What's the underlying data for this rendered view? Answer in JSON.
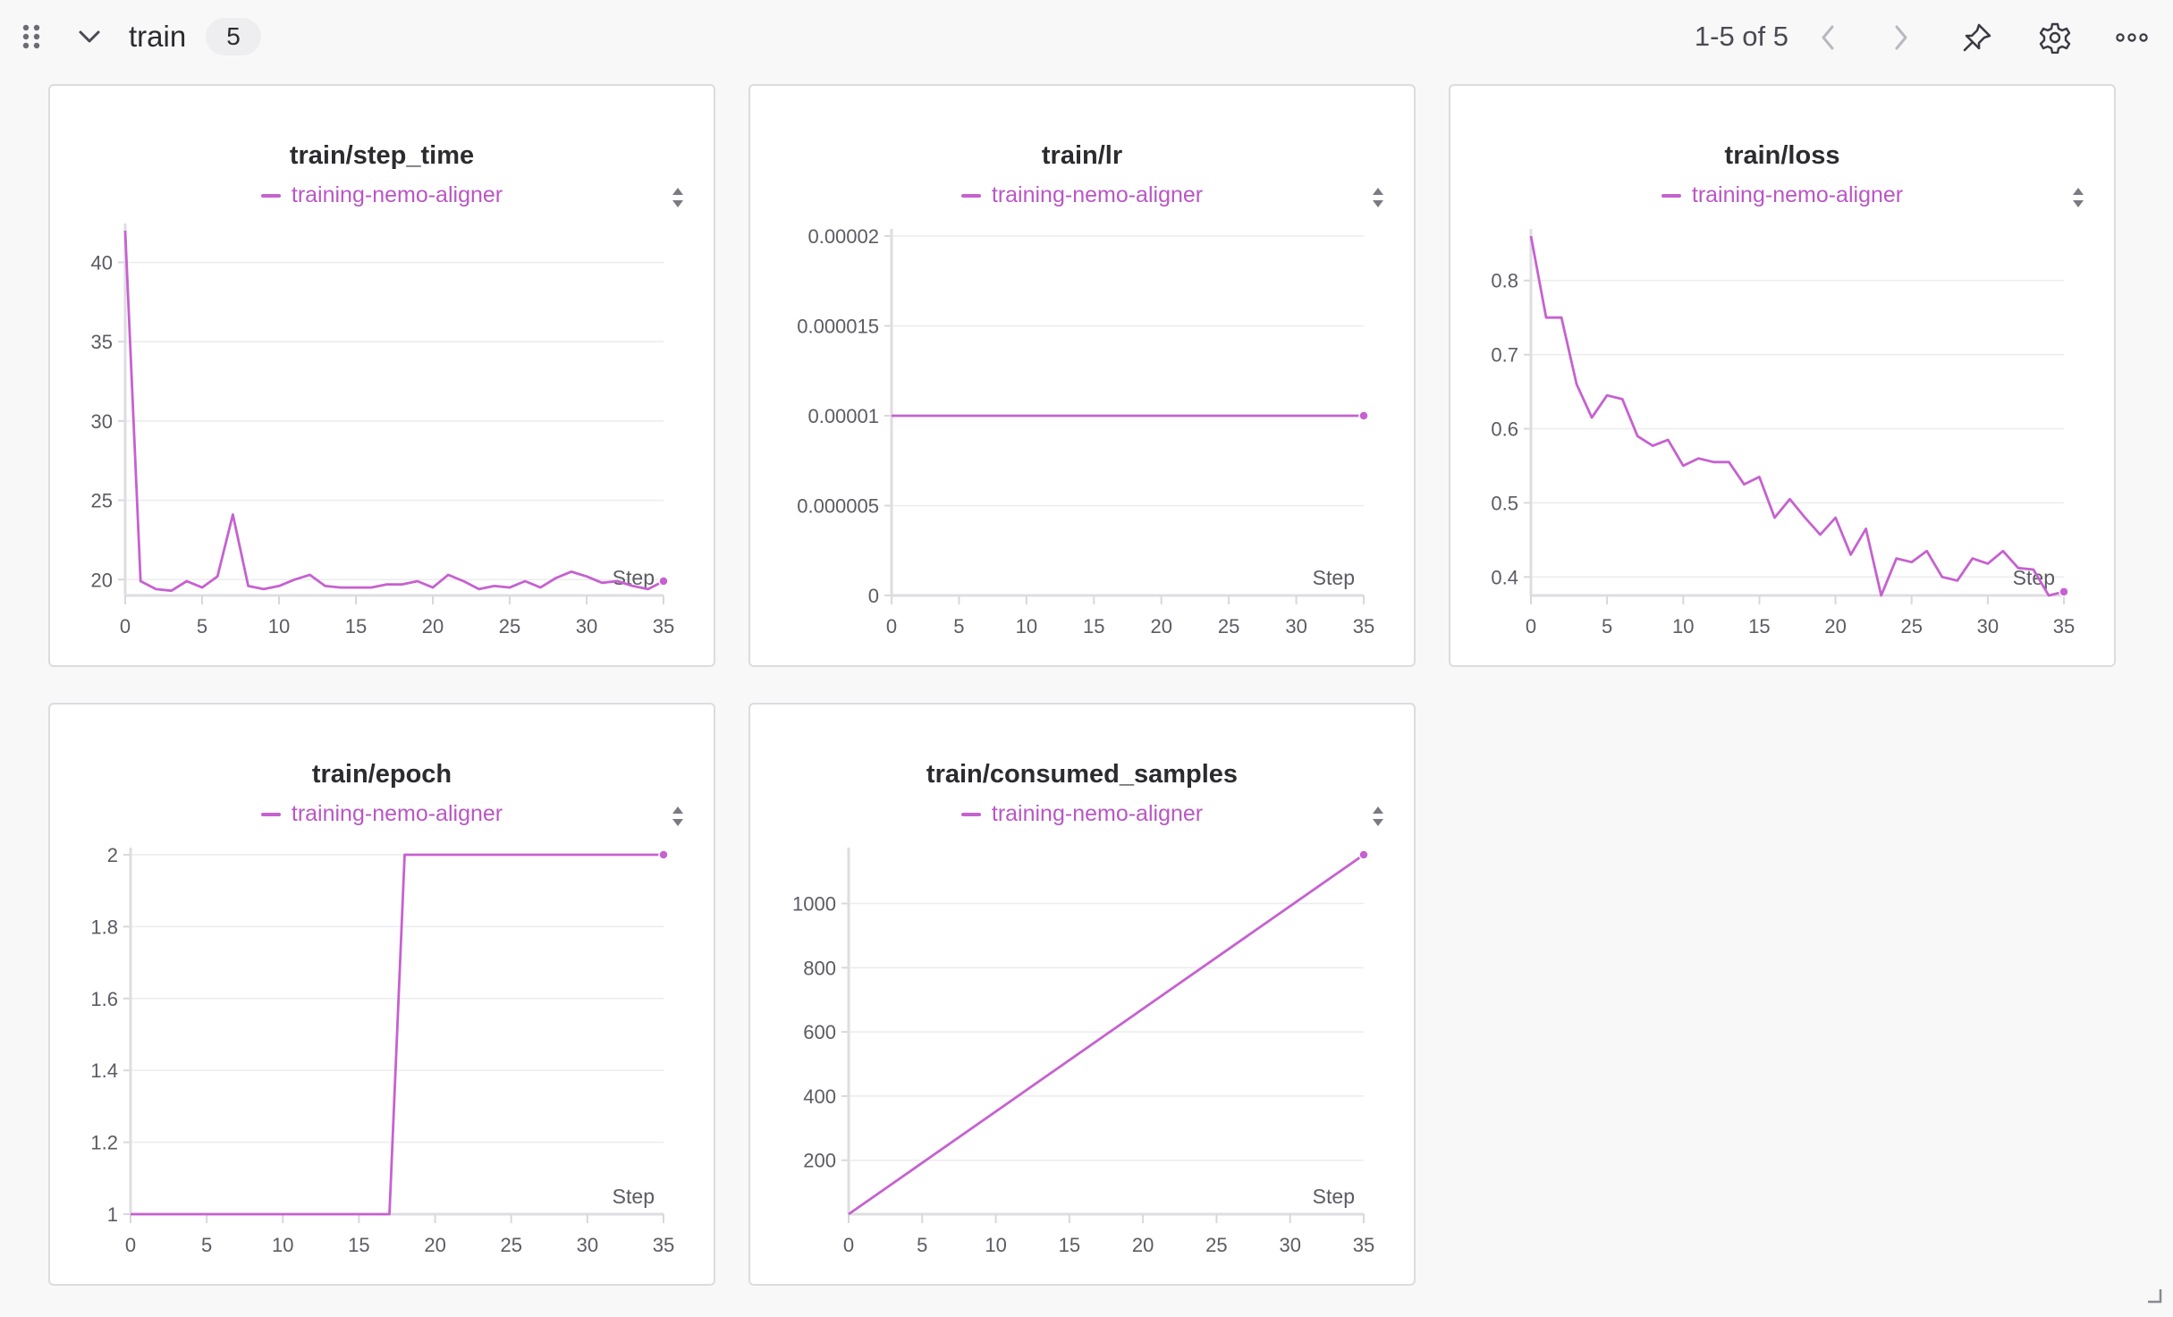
{
  "header": {
    "group_title": "train",
    "group_count": "5",
    "pager": "1-5 of 5",
    "icons": [
      "drag-handle-icon",
      "chevron-down-icon",
      "chevron-left-icon",
      "chevron-right-icon",
      "pin-icon",
      "gear-icon",
      "more-horizontal-icon"
    ]
  },
  "colors": {
    "series": "#c661d0",
    "legend_text": "#b957c4"
  },
  "chart_data": [
    {
      "type": "line",
      "title": "train/step_time",
      "xlabel": "Step",
      "ylabel": "",
      "xlim": [
        0,
        35
      ],
      "ylim": [
        19,
        42
      ],
      "xticks": [
        0,
        5,
        10,
        15,
        20,
        25,
        30,
        35
      ],
      "yticks": [
        20,
        25,
        30,
        35,
        40
      ],
      "ytick_labels": [
        "20",
        "25",
        "30",
        "35",
        "40"
      ],
      "series": [
        {
          "name": "training-nemo-aligner",
          "x": [
            0,
            1,
            2,
            3,
            4,
            5,
            6,
            7,
            8,
            9,
            10,
            11,
            12,
            13,
            14,
            15,
            16,
            17,
            18,
            19,
            20,
            21,
            22,
            23,
            24,
            25,
            26,
            27,
            28,
            29,
            30,
            31,
            32,
            33,
            34,
            35
          ],
          "y": [
            42,
            19.9,
            19.4,
            19.3,
            19.9,
            19.5,
            20.2,
            24.1,
            19.6,
            19.4,
            19.6,
            20.0,
            20.3,
            19.6,
            19.5,
            19.5,
            19.5,
            19.7,
            19.7,
            19.9,
            19.5,
            20.3,
            19.9,
            19.4,
            19.6,
            19.5,
            19.9,
            19.5,
            20.1,
            20.5,
            20.2,
            19.8,
            19.9,
            19.6,
            19.4,
            19.9
          ]
        }
      ]
    },
    {
      "type": "line",
      "title": "train/lr",
      "xlabel": "Step",
      "ylabel": "",
      "xlim": [
        0,
        35
      ],
      "ylim": [
        0,
        2e-05
      ],
      "xticks": [
        0,
        5,
        10,
        15,
        20,
        25,
        30,
        35
      ],
      "yticks": [
        0,
        5e-06,
        1e-05,
        1.5e-05,
        2e-05
      ],
      "ytick_labels": [
        "0",
        "0.000005",
        "0.00001",
        "0.000015",
        "0.00002"
      ],
      "series": [
        {
          "name": "training-nemo-aligner",
          "x": [
            0,
            35
          ],
          "y": [
            1e-05,
            1e-05
          ]
        }
      ]
    },
    {
      "type": "line",
      "title": "train/loss",
      "xlabel": "Step",
      "ylabel": "",
      "xlim": [
        0,
        35
      ],
      "ylim": [
        0.375,
        0.86
      ],
      "xticks": [
        0,
        5,
        10,
        15,
        20,
        25,
        30,
        35
      ],
      "yticks": [
        0.4,
        0.5,
        0.6,
        0.7,
        0.8
      ],
      "ytick_labels": [
        "0.4",
        "0.5",
        "0.6",
        "0.7",
        "0.8"
      ],
      "series": [
        {
          "name": "training-nemo-aligner",
          "x": [
            0,
            1,
            2,
            3,
            4,
            5,
            6,
            7,
            8,
            9,
            10,
            11,
            12,
            13,
            14,
            15,
            16,
            17,
            18,
            19,
            20,
            21,
            22,
            23,
            24,
            25,
            26,
            27,
            28,
            29,
            30,
            31,
            32,
            33,
            34,
            35
          ],
          "y": [
            0.86,
            0.75,
            0.75,
            0.66,
            0.615,
            0.645,
            0.64,
            0.59,
            0.577,
            0.585,
            0.55,
            0.56,
            0.555,
            0.555,
            0.525,
            0.535,
            0.48,
            0.505,
            0.48,
            0.457,
            0.48,
            0.43,
            0.465,
            0.375,
            0.425,
            0.42,
            0.435,
            0.4,
            0.395,
            0.425,
            0.418,
            0.435,
            0.412,
            0.41,
            0.375,
            0.38
          ]
        }
      ]
    },
    {
      "type": "line",
      "title": "train/epoch",
      "xlabel": "Step",
      "ylabel": "",
      "xlim": [
        0,
        35
      ],
      "ylim": [
        1,
        2
      ],
      "xticks": [
        0,
        5,
        10,
        15,
        20,
        25,
        30,
        35
      ],
      "yticks": [
        1,
        1.2,
        1.4,
        1.6,
        1.8,
        2
      ],
      "ytick_labels": [
        "1",
        "1.2",
        "1.4",
        "1.6",
        "1.8",
        "2"
      ],
      "series": [
        {
          "name": "training-nemo-aligner",
          "x": [
            0,
            17,
            18,
            35
          ],
          "y": [
            1,
            1,
            2,
            2
          ]
        }
      ]
    },
    {
      "type": "line",
      "title": "train/consumed_samples",
      "xlabel": "Step",
      "ylabel": "",
      "xlim": [
        0,
        35
      ],
      "ylim": [
        32,
        1152
      ],
      "xticks": [
        0,
        5,
        10,
        15,
        20,
        25,
        30,
        35
      ],
      "yticks": [
        200,
        400,
        600,
        800,
        1000
      ],
      "ytick_labels": [
        "200",
        "400",
        "600",
        "800",
        "1000"
      ],
      "series": [
        {
          "name": "training-nemo-aligner",
          "x": [
            0,
            35
          ],
          "y": [
            32,
            1152
          ]
        }
      ]
    }
  ]
}
